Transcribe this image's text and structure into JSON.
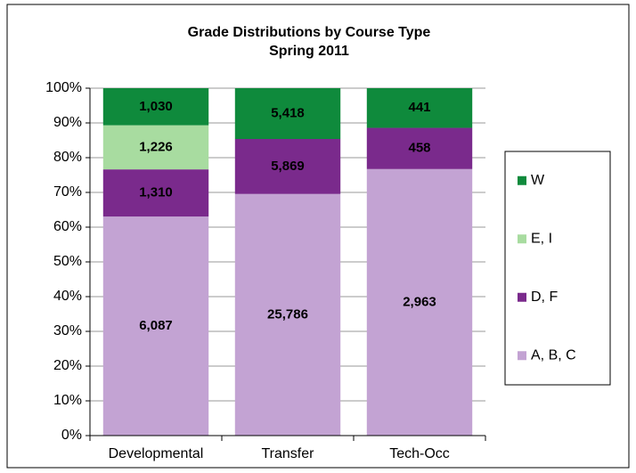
{
  "chart_data": {
    "type": "bar",
    "percent_stacked": true,
    "title": "Grade Distributions by Course Type",
    "subtitle": "Spring 2011",
    "categories": [
      "Developmental",
      "Transfer",
      "Tech-Occ"
    ],
    "series": [
      {
        "name": "A, B, C",
        "color": "#c3a3d3",
        "values": [
          6087,
          25786,
          2963
        ],
        "value_labels": [
          "6,087",
          "25,786",
          "2,963"
        ]
      },
      {
        "name": "D, F",
        "color": "#7a2a8c",
        "values": [
          1310,
          5869,
          458
        ],
        "value_labels": [
          "1,310",
          "5,869",
          "458"
        ]
      },
      {
        "name": "E, I",
        "color": "#a8dca0",
        "values": [
          1226,
          null,
          null
        ],
        "value_labels": [
          "1,226",
          null,
          null
        ]
      },
      {
        "name": "W",
        "color": "#0f8a3c",
        "values": [
          1030,
          5418,
          441
        ],
        "value_labels": [
          "1,030",
          "5,418",
          "441"
        ]
      }
    ],
    "ylim": [
      0,
      100
    ],
    "yticks": [
      {
        "value": 0,
        "label": "0%"
      },
      {
        "value": 10,
        "label": "10%"
      },
      {
        "value": 20,
        "label": "20%"
      },
      {
        "value": 30,
        "label": "30%"
      },
      {
        "value": 40,
        "label": "40%"
      },
      {
        "value": 50,
        "label": "50%"
      },
      {
        "value": 60,
        "label": "60%"
      },
      {
        "value": 70,
        "label": "70%"
      },
      {
        "value": 80,
        "label": "80%"
      },
      {
        "value": 90,
        "label": "90%"
      },
      {
        "value": 100,
        "label": "100%"
      }
    ],
    "grid": true,
    "legend": "right"
  }
}
